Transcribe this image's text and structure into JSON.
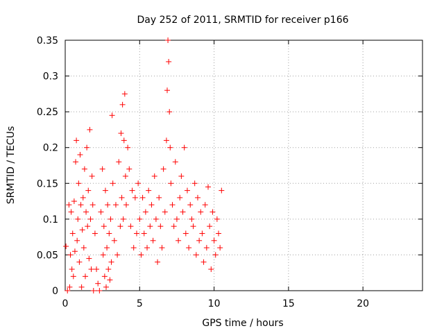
{
  "chart_data": {
    "type": "scatter",
    "title": "Day 252 of 2011, SRMTID for receiver p166",
    "xlabel": "GPS time / hours",
    "ylabel": "SRMTID / TECUs",
    "xlim": [
      0,
      24
    ],
    "ylim": [
      0,
      0.35
    ],
    "x_ticks": [
      0,
      5,
      10,
      15,
      20
    ],
    "x_tick_labels": [
      "0",
      "5",
      "10",
      "15",
      "20"
    ],
    "y_ticks": [
      0,
      0.05,
      0.1,
      0.15,
      0.2,
      0.25,
      0.3,
      0.35
    ],
    "y_tick_labels": [
      "0",
      "0.05",
      "0.1",
      "0.15",
      "0.2",
      "0.25",
      "0.3",
      "0.35"
    ],
    "grid": true,
    "legend": "none",
    "marker": "+",
    "marker_color": "#ff0000",
    "series": [
      {
        "x": [
          0.05,
          0.15,
          0.25,
          0.3,
          0.35,
          0.4,
          0.45,
          0.5,
          0.55,
          0.6,
          0.65,
          0.7,
          0.75,
          0.8,
          0.85,
          0.9,
          0.95,
          1.0,
          1.05,
          1.1,
          1.15,
          1.2,
          1.25,
          1.3,
          1.35,
          1.4,
          1.45,
          1.5,
          1.55,
          1.6,
          1.65,
          1.7,
          1.75,
          1.8,
          1.85,
          1.9,
          2.0,
          2.1,
          2.2,
          2.3,
          2.4,
          2.5,
          2.55,
          2.6,
          2.65,
          2.7,
          2.75,
          2.8,
          2.85,
          2.9,
          2.95,
          3.0,
          3.05,
          3.1,
          3.15,
          3.2,
          3.3,
          3.4,
          3.5,
          3.6,
          3.7,
          3.75,
          3.8,
          3.85,
          3.9,
          3.95,
          4.0,
          4.05,
          4.1,
          4.2,
          4.3,
          4.4,
          4.5,
          4.6,
          4.7,
          4.8,
          4.9,
          5.0,
          5.1,
          5.2,
          5.3,
          5.4,
          5.5,
          5.6,
          5.7,
          5.8,
          5.9,
          6.0,
          6.1,
          6.2,
          6.3,
          6.4,
          6.5,
          6.6,
          6.7,
          6.8,
          6.85,
          6.9,
          6.95,
          7.0,
          7.05,
          7.1,
          7.2,
          7.3,
          7.4,
          7.5,
          7.6,
          7.7,
          7.8,
          7.9,
          8.0,
          8.1,
          8.2,
          8.3,
          8.4,
          8.5,
          8.6,
          8.7,
          8.8,
          8.9,
          9.0,
          9.1,
          9.2,
          9.3,
          9.4,
          9.5,
          9.6,
          9.7,
          9.8,
          9.9,
          10.0,
          10.1,
          10.2,
          10.3,
          10.4,
          10.5
        ],
        "y": [
          0.062,
          0.0,
          0.12,
          0.005,
          0.05,
          0.11,
          0.03,
          0.08,
          0.02,
          0.125,
          0.055,
          0.18,
          0.21,
          0.07,
          0.1,
          0.15,
          0.04,
          0.19,
          0.12,
          0.005,
          0.085,
          0.13,
          0.06,
          0.17,
          0.02,
          0.11,
          0.2,
          0.09,
          0.14,
          0.045,
          0.225,
          0.1,
          0.03,
          0.16,
          0.12,
          0.0,
          0.08,
          0.03,
          0.01,
          0.0,
          0.11,
          0.17,
          0.05,
          0.09,
          0.02,
          0.14,
          0.005,
          0.06,
          0.12,
          0.03,
          0.08,
          0.015,
          0.1,
          0.04,
          0.245,
          0.15,
          0.07,
          0.12,
          0.05,
          0.18,
          0.09,
          0.22,
          0.13,
          0.26,
          0.1,
          0.21,
          0.275,
          0.16,
          0.12,
          0.2,
          0.17,
          0.09,
          0.14,
          0.06,
          0.13,
          0.08,
          0.15,
          0.1,
          0.05,
          0.13,
          0.08,
          0.11,
          0.06,
          0.14,
          0.09,
          0.12,
          0.07,
          0.16,
          0.1,
          0.04,
          0.13,
          0.09,
          0.06,
          0.17,
          0.11,
          0.21,
          0.28,
          0.35,
          0.32,
          0.25,
          0.2,
          0.15,
          0.12,
          0.09,
          0.18,
          0.1,
          0.07,
          0.13,
          0.16,
          0.11,
          0.2,
          0.08,
          0.14,
          0.06,
          0.12,
          0.1,
          0.09,
          0.15,
          0.05,
          0.13,
          0.07,
          0.11,
          0.08,
          0.04,
          0.12,
          0.06,
          0.145,
          0.09,
          0.03,
          0.11,
          0.07,
          0.05,
          0.1,
          0.08,
          0.06,
          0.14
        ]
      }
    ]
  }
}
